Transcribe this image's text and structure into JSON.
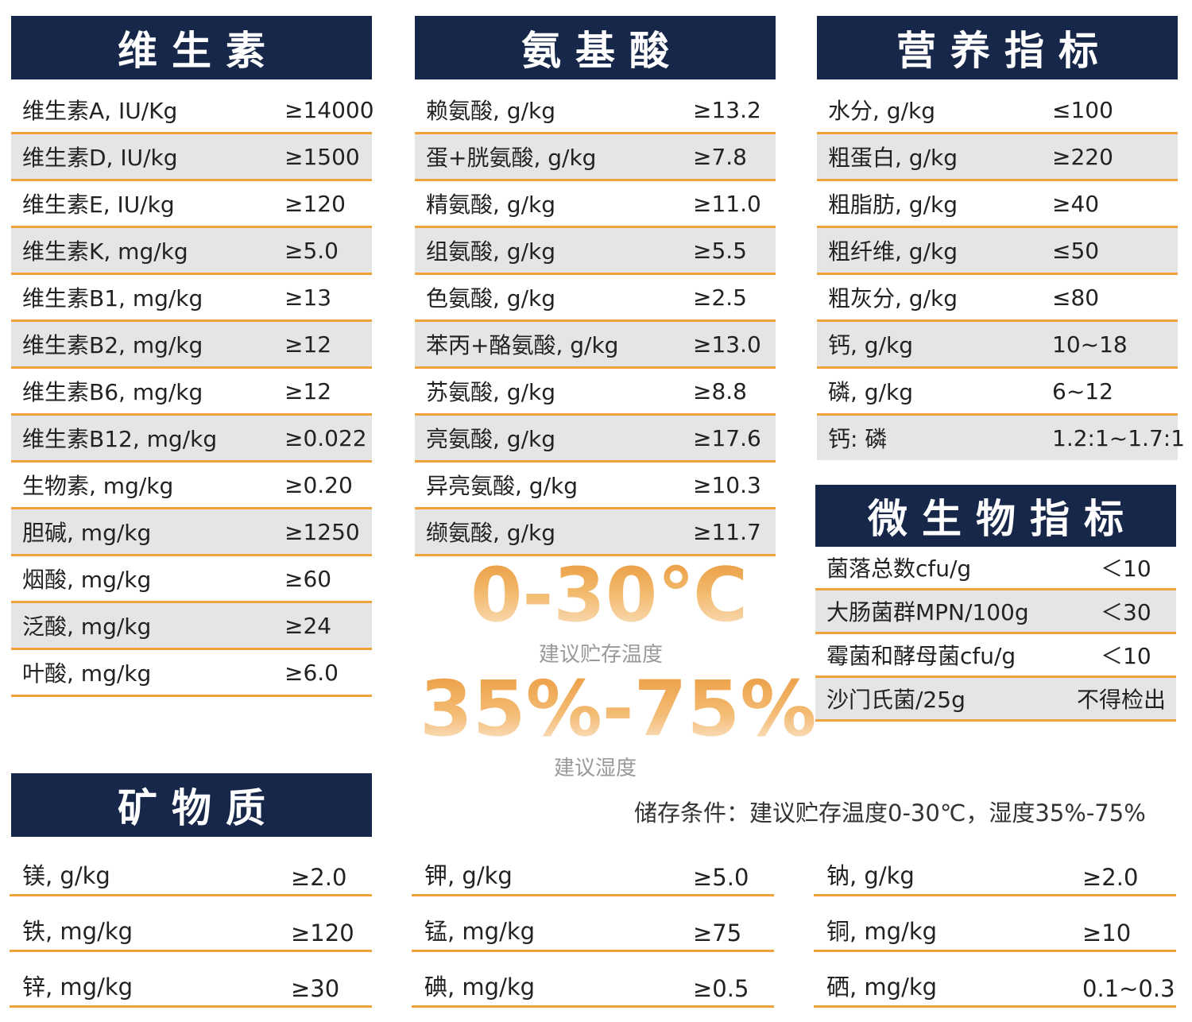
{
  "vitamins": {
    "title": "维生素",
    "rows": [
      {
        "name": "维生素A, IU/Kg",
        "value": "≥14000"
      },
      {
        "name": "维生素D, IU/kg",
        "value": "≥1500"
      },
      {
        "name": "维生素E, IU/kg",
        "value": "≥120"
      },
      {
        "name": "维生素K, mg/kg",
        "value": "≥5.0"
      },
      {
        "name": "维生素B1, mg/kg",
        "value": "≥13"
      },
      {
        "name": "维生素B2, mg/kg",
        "value": "≥12"
      },
      {
        "name": "维生素B6, mg/kg",
        "value": "≥12"
      },
      {
        "name": "维生素B12, mg/kg",
        "value": "≥0.022"
      },
      {
        "name": "生物素, mg/kg",
        "value": "≥0.20"
      },
      {
        "name": "胆碱, mg/kg",
        "value": "≥1250"
      },
      {
        "name": "烟酸, mg/kg",
        "value": "≥60"
      },
      {
        "name": "泛酸, mg/kg",
        "value": "≥24"
      },
      {
        "name": "叶酸, mg/kg",
        "value": "≥6.0"
      }
    ]
  },
  "amino_acids": {
    "title": "氨基酸",
    "rows": [
      {
        "name": "赖氨酸, g/kg",
        "value": "≥13.2"
      },
      {
        "name": "蛋+胱氨酸, g/kg",
        "value": "≥7.8"
      },
      {
        "name": "精氨酸, g/kg",
        "value": "≥11.0"
      },
      {
        "name": "组氨酸, g/kg",
        "value": "≥5.5"
      },
      {
        "name": "色氨酸, g/kg",
        "value": "≥2.5"
      },
      {
        "name": "苯丙+酪氨酸, g/kg",
        "value": "≥13.0"
      },
      {
        "name": "苏氨酸, g/kg",
        "value": "≥8.8"
      },
      {
        "name": "亮氨酸, g/kg",
        "value": "≥17.6"
      },
      {
        "name": "异亮氨酸, g/kg",
        "value": "≥10.3"
      },
      {
        "name": "缬氨酸, g/kg",
        "value": "≥11.7"
      }
    ]
  },
  "nutrition": {
    "title": "营养指标",
    "rows": [
      {
        "name": "水分, g/kg",
        "value": "≤100"
      },
      {
        "name": "粗蛋白, g/kg",
        "value": "≥220"
      },
      {
        "name": "粗脂肪, g/kg",
        "value": "≥40"
      },
      {
        "name": "粗纤维, g/kg",
        "value": "≤50"
      },
      {
        "name": "粗灰分, g/kg",
        "value": "≤80"
      },
      {
        "name": "钙, g/kg",
        "value": "10~18"
      },
      {
        "name": "磷, g/kg",
        "value": "6~12"
      },
      {
        "name": "钙: 磷",
        "value": "1.2:1~1.7:1"
      }
    ]
  },
  "microbes": {
    "title": "微生物指标",
    "rows": [
      {
        "name": "菌落总数cfu/g",
        "value": "＜10"
      },
      {
        "name": "大肠菌群MPN/100g",
        "value": "＜30"
      },
      {
        "name": "霉菌和酵母菌cfu/g",
        "value": "＜10"
      },
      {
        "name": "沙门氏菌/25g",
        "value": "不得检出"
      }
    ]
  },
  "storage": {
    "temperature": "0-30℃",
    "temperature_caption": "建议贮存温度",
    "humidity": "35%-75%",
    "humidity_caption": "建议湿度",
    "note": "储存条件：建议贮存温度0-30℃，湿度35%-75%"
  },
  "minerals": {
    "title": "矿物质",
    "rows": [
      {
        "name": "镁, g/kg",
        "value": "≥2.0"
      },
      {
        "name": "铁, mg/kg",
        "value": "≥120"
      },
      {
        "name": "锌, mg/kg",
        "value": "≥30"
      },
      {
        "name": "钾, g/kg",
        "value": "≥5.0"
      },
      {
        "name": "锰, mg/kg",
        "value": "≥75"
      },
      {
        "name": "碘, mg/kg",
        "value": "≥0.5"
      },
      {
        "name": "钠, g/kg",
        "value": "≥2.0"
      },
      {
        "name": "铜, mg/kg",
        "value": "≥10"
      },
      {
        "name": "硒, mg/kg",
        "value": "0.1~0.3"
      }
    ]
  },
  "colors": {
    "header_bg": "#17274a",
    "row_divider": "#f0a23a",
    "alt_row_bg": "#e5e5e5",
    "accent_gradient_top": "#e9963a"
  }
}
